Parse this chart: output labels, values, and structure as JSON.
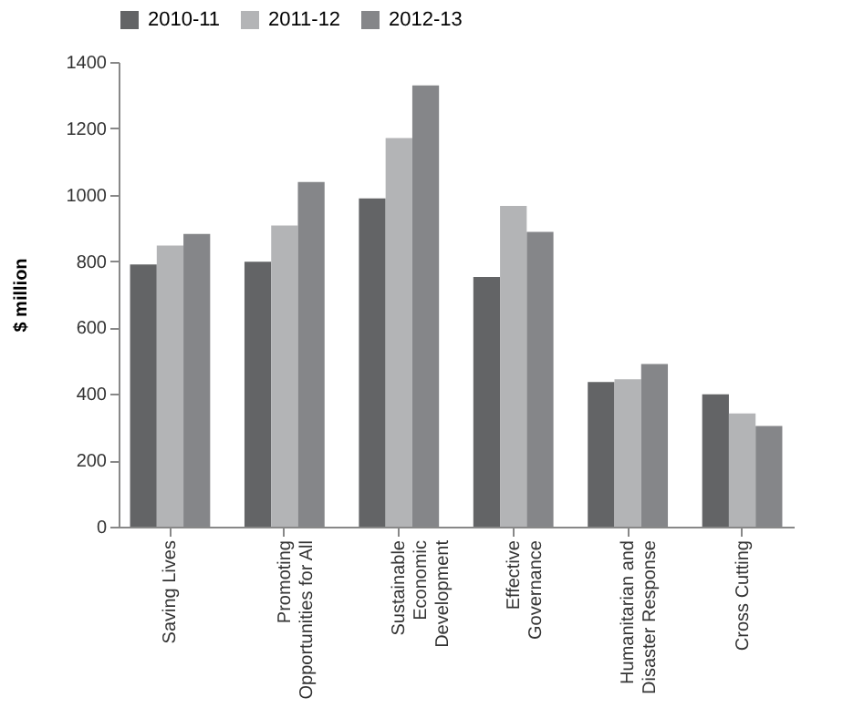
{
  "chart_data": {
    "type": "bar",
    "ylabel": "$ million",
    "categories": [
      "Saving Lives",
      "Promoting\nOpportunities for All",
      "Sustainable\nEconomic\nDevelopment",
      "Effective\nGovernance",
      "Humanitarian and\nDisaster Response",
      "Cross Cutting"
    ],
    "series": [
      {
        "name": "2010-11",
        "color": "#636466",
        "values": [
          790,
          798,
          989,
          752,
          436,
          399
        ]
      },
      {
        "name": "2011-12",
        "color": "#b3b4b6",
        "values": [
          847,
          907,
          1171,
          966,
          444,
          341
        ]
      },
      {
        "name": "2012-13",
        "color": "#858689",
        "values": [
          882,
          1038,
          1329,
          888,
          490,
          303
        ]
      }
    ],
    "ylim": [
      0,
      1400
    ],
    "yticks": [
      0,
      200,
      400,
      600,
      800,
      1000,
      1200,
      1400
    ],
    "grid": false,
    "legend": "top"
  }
}
